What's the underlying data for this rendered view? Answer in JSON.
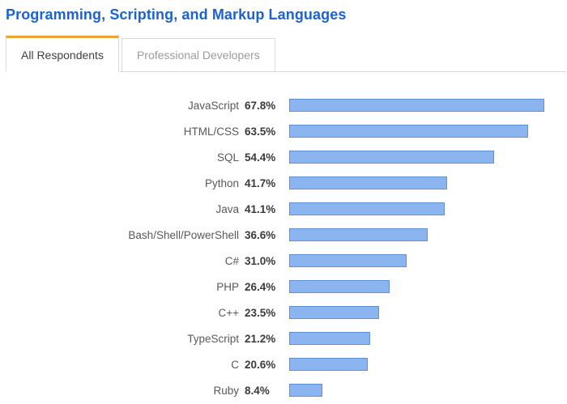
{
  "page": {
    "title": "Programming, Scripting, and Markup Languages"
  },
  "tabs": [
    {
      "label": "All Respondents",
      "active": true
    },
    {
      "label": "Professional Developers",
      "active": false
    }
  ],
  "colors": {
    "title_blue": "#1b63cf",
    "tab_accent_orange": "#efa234",
    "tab_border_gray": "#d9d9d9",
    "bar_fill": "#8ab5f0",
    "bar_border": "#5e91d5",
    "category_text": "#58595b",
    "value_text": "#3a3a3a"
  },
  "chart_data": {
    "type": "bar",
    "orientation": "horizontal",
    "title": "Programming, Scripting, and Markup Languages",
    "unit": "%",
    "grid": false,
    "legend": false,
    "xlim": [
      0,
      74
    ],
    "categories": [
      "JavaScript",
      "HTML/CSS",
      "SQL",
      "Python",
      "Java",
      "Bash/Shell/PowerShell",
      "C#",
      "PHP",
      "C++",
      "TypeScript",
      "C",
      "Ruby"
    ],
    "values": [
      67.8,
      63.5,
      54.4,
      41.7,
      41.1,
      36.6,
      31.0,
      26.4,
      23.5,
      21.2,
      20.6,
      8.4
    ],
    "value_labels": [
      "67.8%",
      "63.5%",
      "54.4%",
      "41.7%",
      "41.1%",
      "36.6%",
      "31.0%",
      "26.4%",
      "23.5%",
      "21.2%",
      "20.6%",
      "8.4%"
    ]
  }
}
